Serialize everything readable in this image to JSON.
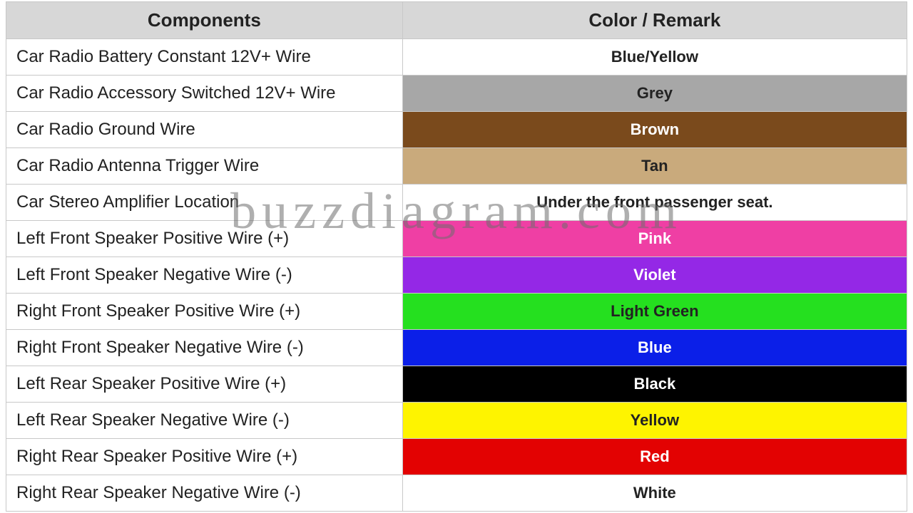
{
  "watermark": "buzzdiagram.com",
  "table": {
    "headers": {
      "components": "Components",
      "color_remark": "Color / Remark"
    },
    "header_bg": "#d7d7d7",
    "header_text_color": "#222222",
    "border_color": "#c8c8c8",
    "rows": [
      {
        "component": "Car Radio Battery Constant 12V+ Wire",
        "label": "Blue/Yellow",
        "bg": "#ffffff",
        "fg": "#222222"
      },
      {
        "component": "Car Radio Accessory Switched 12V+ Wire",
        "label": "Grey",
        "bg": "#a7a7a7",
        "fg": "#222222"
      },
      {
        "component": "Car Radio Ground Wire",
        "label": "Brown",
        "bg": "#7a4a1c",
        "fg": "#ffffff"
      },
      {
        "component": "Car Radio Antenna Trigger Wire",
        "label": "Tan",
        "bg": "#c9aa7c",
        "fg": "#222222"
      },
      {
        "component": "Car Stereo Amplifier Location",
        "label": "Under the front passenger seat.",
        "bg": "#ffffff",
        "fg": "#222222"
      },
      {
        "component": "Left Front Speaker Positive Wire (+)",
        "label": "Pink",
        "bg": "#ef3fa4",
        "fg": "#ffffff"
      },
      {
        "component": "Left Front Speaker Negative Wire (-)",
        "label": "Violet",
        "bg": "#9428e6",
        "fg": "#ffffff"
      },
      {
        "component": "Right Front Speaker Positive Wire (+)",
        "label": "Light Green",
        "bg": "#25e01f",
        "fg": "#222222"
      },
      {
        "component": "Right Front Speaker Negative Wire (-)",
        "label": "Blue",
        "bg": "#0b1fe8",
        "fg": "#ffffff"
      },
      {
        "component": "Left Rear Speaker Positive Wire (+)",
        "label": "Black",
        "bg": "#000000",
        "fg": "#ffffff"
      },
      {
        "component": "Left Rear Speaker Negative Wire (-)",
        "label": "Yellow",
        "bg": "#fef400",
        "fg": "#222222"
      },
      {
        "component": "Right Rear Speaker Positive Wire (+)",
        "label": "Red",
        "bg": "#e30202",
        "fg": "#ffffff"
      },
      {
        "component": "Right Rear Speaker Negative Wire (-)",
        "label": "White",
        "bg": "#ffffff",
        "fg": "#222222"
      }
    ]
  }
}
